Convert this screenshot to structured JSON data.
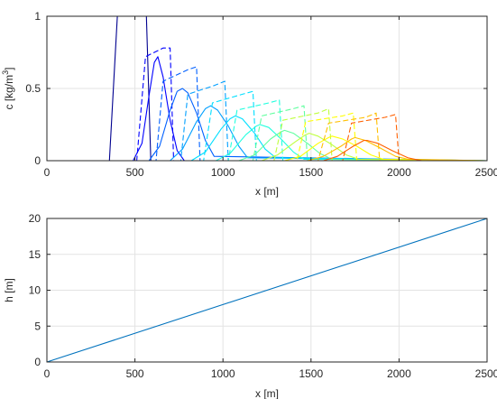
{
  "chart_data": [
    {
      "type": "line",
      "xlabel": "x [m]",
      "ylabel": "c [kg/m",
      "ylabel_sup": "3",
      "ylabel_end": "]",
      "xlim": [
        0,
        2500
      ],
      "ylim": [
        0,
        1
      ],
      "xticks": [
        0,
        500,
        1000,
        1500,
        2000,
        2500
      ],
      "yticks": [
        0,
        0.5,
        1
      ],
      "grid": true,
      "series": [
        {
          "color": "#00008f",
          "style": "solid",
          "x": [
            0,
            355,
            400,
            445,
            540,
            565,
            590,
            2500
          ],
          "y": [
            0,
            0,
            1,
            1,
            1,
            1,
            0,
            0
          ]
        },
        {
          "color": "#0000ff",
          "style": "solid",
          "x": [
            0,
            490,
            540,
            580,
            610,
            630,
            660,
            700,
            740,
            780,
            2500
          ],
          "y": [
            0,
            0,
            0.12,
            0.45,
            0.68,
            0.72,
            0.58,
            0.28,
            0.07,
            0,
            0
          ]
        },
        {
          "color": "#0000ff",
          "style": "dashed",
          "x": [
            0,
            510,
            560,
            660,
            700,
            720,
            2500
          ],
          "y": [
            0,
            0,
            0.72,
            0.78,
            0.78,
            0,
            0
          ]
        },
        {
          "color": "#0060ff",
          "style": "solid",
          "x": [
            0,
            580,
            640,
            700,
            740,
            770,
            800,
            850,
            900,
            950,
            2500
          ],
          "y": [
            0,
            0,
            0.1,
            0.35,
            0.48,
            0.5,
            0.47,
            0.33,
            0.14,
            0.03,
            0
          ]
        },
        {
          "color": "#0060ff",
          "style": "dashed",
          "x": [
            0,
            620,
            660,
            800,
            850,
            870,
            2500
          ],
          "y": [
            0,
            0,
            0.55,
            0.63,
            0.65,
            0,
            0
          ]
        },
        {
          "color": "#009fff",
          "style": "solid",
          "x": [
            0,
            700,
            770,
            850,
            900,
            930,
            970,
            1030,
            1090,
            1140,
            2500
          ],
          "y": [
            0,
            0,
            0.08,
            0.27,
            0.36,
            0.38,
            0.35,
            0.24,
            0.1,
            0.02,
            0
          ]
        },
        {
          "color": "#009fff",
          "style": "dashed",
          "x": [
            0,
            760,
            800,
            950,
            1010,
            1030,
            2500
          ],
          "y": [
            0,
            0,
            0.46,
            0.52,
            0.55,
            0,
            0
          ]
        },
        {
          "color": "#00dfff",
          "style": "solid",
          "x": [
            0,
            820,
            900,
            990,
            1040,
            1070,
            1110,
            1180,
            1240,
            1300,
            2500
          ],
          "y": [
            0,
            0,
            0.06,
            0.22,
            0.29,
            0.31,
            0.29,
            0.19,
            0.08,
            0.02,
            0
          ]
        },
        {
          "color": "#00dfff",
          "style": "dashed",
          "x": [
            0,
            890,
            940,
            1110,
            1170,
            1190,
            2500
          ],
          "y": [
            0,
            0,
            0.4,
            0.46,
            0.48,
            0,
            0
          ]
        },
        {
          "color": "#20ffdf",
          "style": "solid",
          "x": [
            0,
            960,
            1040,
            1130,
            1190,
            1210,
            1260,
            1330,
            1400,
            1460,
            2500
          ],
          "y": [
            0,
            0,
            0.05,
            0.18,
            0.24,
            0.25,
            0.23,
            0.15,
            0.06,
            0.01,
            0
          ]
        },
        {
          "color": "#20ffdf",
          "style": "dashed",
          "x": [
            0,
            1030,
            1080,
            1260,
            1320,
            1340,
            2500
          ],
          "y": [
            0,
            0,
            0.35,
            0.4,
            0.42,
            0,
            0
          ]
        },
        {
          "color": "#60ff9f",
          "style": "solid",
          "x": [
            0,
            1090,
            1180,
            1270,
            1330,
            1350,
            1400,
            1480,
            1550,
            1620,
            2500
          ],
          "y": [
            0,
            0,
            0.04,
            0.15,
            0.2,
            0.21,
            0.19,
            0.12,
            0.05,
            0.01,
            0
          ]
        },
        {
          "color": "#60ff9f",
          "style": "dashed",
          "x": [
            0,
            1170,
            1220,
            1400,
            1460,
            1480,
            2500
          ],
          "y": [
            0,
            0,
            0.31,
            0.36,
            0.38,
            0,
            0
          ]
        },
        {
          "color": "#bfff40",
          "style": "solid",
          "x": [
            0,
            1220,
            1310,
            1410,
            1470,
            1490,
            1540,
            1620,
            1700,
            1770,
            2500
          ],
          "y": [
            0,
            0,
            0.04,
            0.13,
            0.18,
            0.19,
            0.17,
            0.11,
            0.04,
            0.01,
            0
          ]
        },
        {
          "color": "#bfff40",
          "style": "dashed",
          "x": [
            0,
            1290,
            1340,
            1540,
            1600,
            1620,
            2500
          ],
          "y": [
            0,
            0,
            0.28,
            0.33,
            0.36,
            0,
            0
          ]
        },
        {
          "color": "#ffff00",
          "style": "solid",
          "x": [
            0,
            1350,
            1440,
            1540,
            1600,
            1620,
            1680,
            1760,
            1840,
            1910,
            2500
          ],
          "y": [
            0,
            0,
            0.03,
            0.12,
            0.16,
            0.17,
            0.15,
            0.1,
            0.04,
            0.01,
            0
          ]
        },
        {
          "color": "#ffff00",
          "style": "dashed",
          "x": [
            0,
            1420,
            1470,
            1680,
            1740,
            1760,
            2500
          ],
          "y": [
            0,
            0,
            0.27,
            0.31,
            0.33,
            0,
            0
          ]
        },
        {
          "color": "#ffbf00",
          "style": "solid",
          "x": [
            0,
            1480,
            1570,
            1670,
            1730,
            1750,
            1810,
            1890,
            1980,
            2050,
            2500
          ],
          "y": [
            0,
            0,
            0.03,
            0.1,
            0.15,
            0.16,
            0.14,
            0.09,
            0.03,
            0.01,
            0
          ]
        },
        {
          "color": "#ffbf00",
          "style": "dashed",
          "x": [
            0,
            1540,
            1600,
            1810,
            1870,
            1890,
            2500
          ],
          "y": [
            0,
            0,
            0.26,
            0.3,
            0.33,
            0,
            0
          ]
        },
        {
          "color": "#ff6000",
          "style": "solid",
          "x": [
            0,
            1570,
            1650,
            1740,
            1800,
            1820,
            1880,
            1960,
            2050,
            2130,
            2500
          ],
          "y": [
            0,
            0,
            0.03,
            0.1,
            0.14,
            0.14,
            0.12,
            0.07,
            0.02,
            0,
            0
          ]
        },
        {
          "color": "#ff6000",
          "style": "dashed",
          "x": [
            0,
            1680,
            1730,
            1920,
            1980,
            2000,
            2500
          ],
          "y": [
            0,
            0,
            0.26,
            0.3,
            0.32,
            0,
            0
          ]
        }
      ]
    },
    {
      "type": "line",
      "xlabel": "x [m]",
      "ylabel": "h [m]",
      "xlim": [
        0,
        2500
      ],
      "ylim": [
        0,
        20
      ],
      "xticks": [
        0,
        500,
        1000,
        1500,
        2000,
        2500
      ],
      "yticks": [
        0,
        5,
        10,
        15,
        20
      ],
      "grid": true,
      "series": [
        {
          "color": "#0072bd",
          "style": "solid",
          "x": [
            0,
            2500
          ],
          "y": [
            0,
            20
          ]
        }
      ]
    }
  ]
}
